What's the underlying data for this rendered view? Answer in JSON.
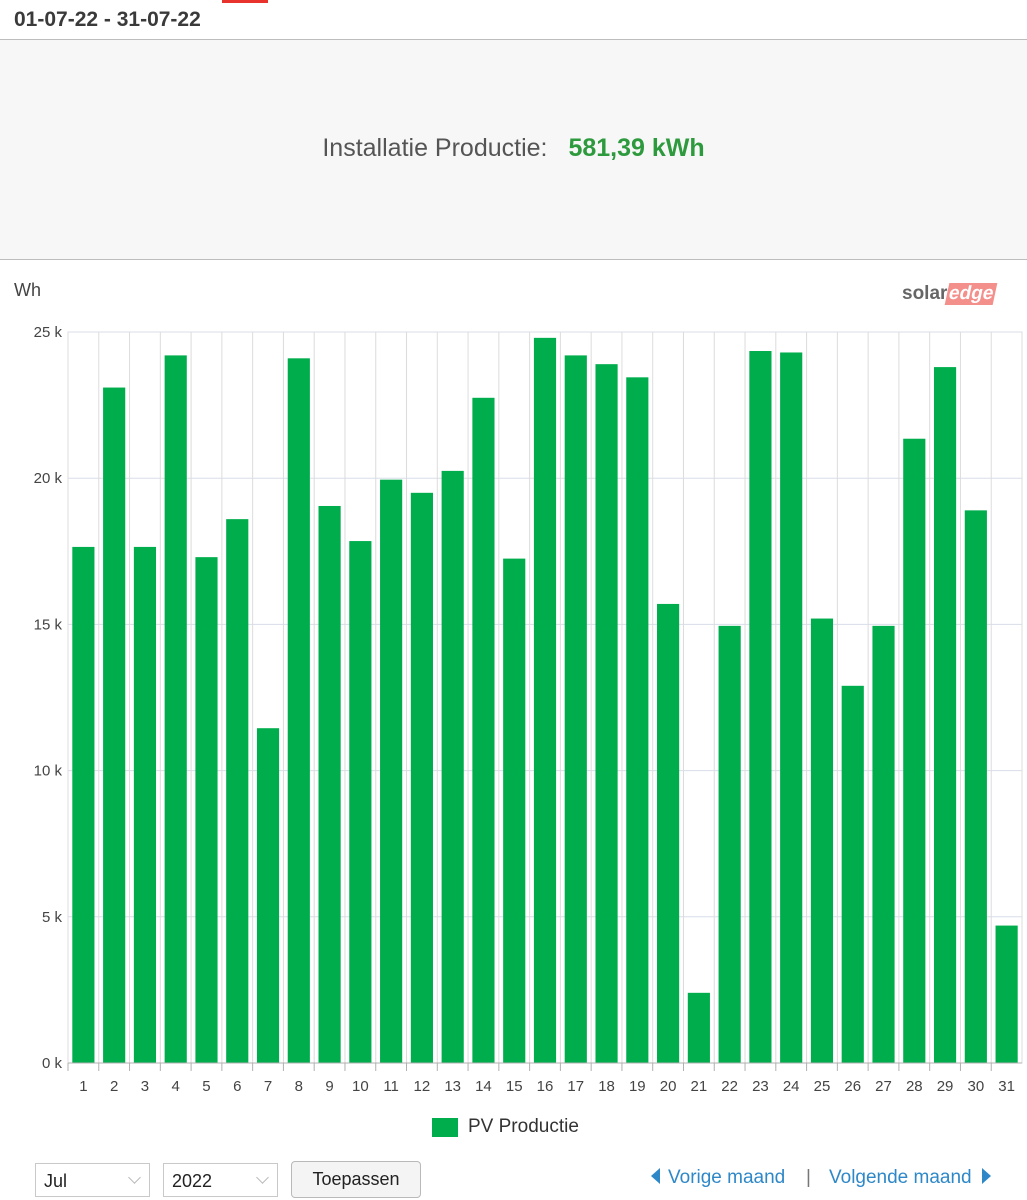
{
  "header": {
    "date_range": "01-07-22 - 31-07-22"
  },
  "summary": {
    "label": "Installatie Productie:",
    "value": "581,39 kWh"
  },
  "chart_unit": "Wh",
  "logo": {
    "part1": "solar",
    "part2": "edge"
  },
  "chart_data": {
    "type": "bar",
    "title": "",
    "xlabel": "",
    "ylabel": "Wh",
    "ylim": [
      0,
      25000
    ],
    "yticks": [
      0,
      5000,
      10000,
      15000,
      20000,
      25000
    ],
    "ytick_labels": [
      "0 k",
      "5 k",
      "10 k",
      "15 k",
      "20 k",
      "25 k"
    ],
    "categories": [
      "1",
      "2",
      "3",
      "4",
      "5",
      "6",
      "7",
      "8",
      "9",
      "10",
      "11",
      "12",
      "13",
      "14",
      "15",
      "16",
      "17",
      "18",
      "19",
      "20",
      "21",
      "22",
      "23",
      "24",
      "25",
      "26",
      "27",
      "28",
      "29",
      "30",
      "31"
    ],
    "series": [
      {
        "name": "PV Productie",
        "color": "#00ad4c",
        "values": [
          17650,
          23100,
          17650,
          24200,
          17300,
          18600,
          11450,
          24100,
          19050,
          17850,
          19950,
          19500,
          20250,
          22750,
          17250,
          24800,
          24200,
          23900,
          23450,
          15700,
          2400,
          14950,
          24350,
          24300,
          15200,
          12900,
          14950,
          21350,
          23800,
          18900,
          4700
        ]
      }
    ],
    "legend": "bottom-center",
    "grid": true
  },
  "controls": {
    "month": "Jul",
    "year": "2022",
    "apply_label": "Toepassen",
    "prev_label": "Vorige maand",
    "separator": "|",
    "next_label": "Volgende maand"
  }
}
